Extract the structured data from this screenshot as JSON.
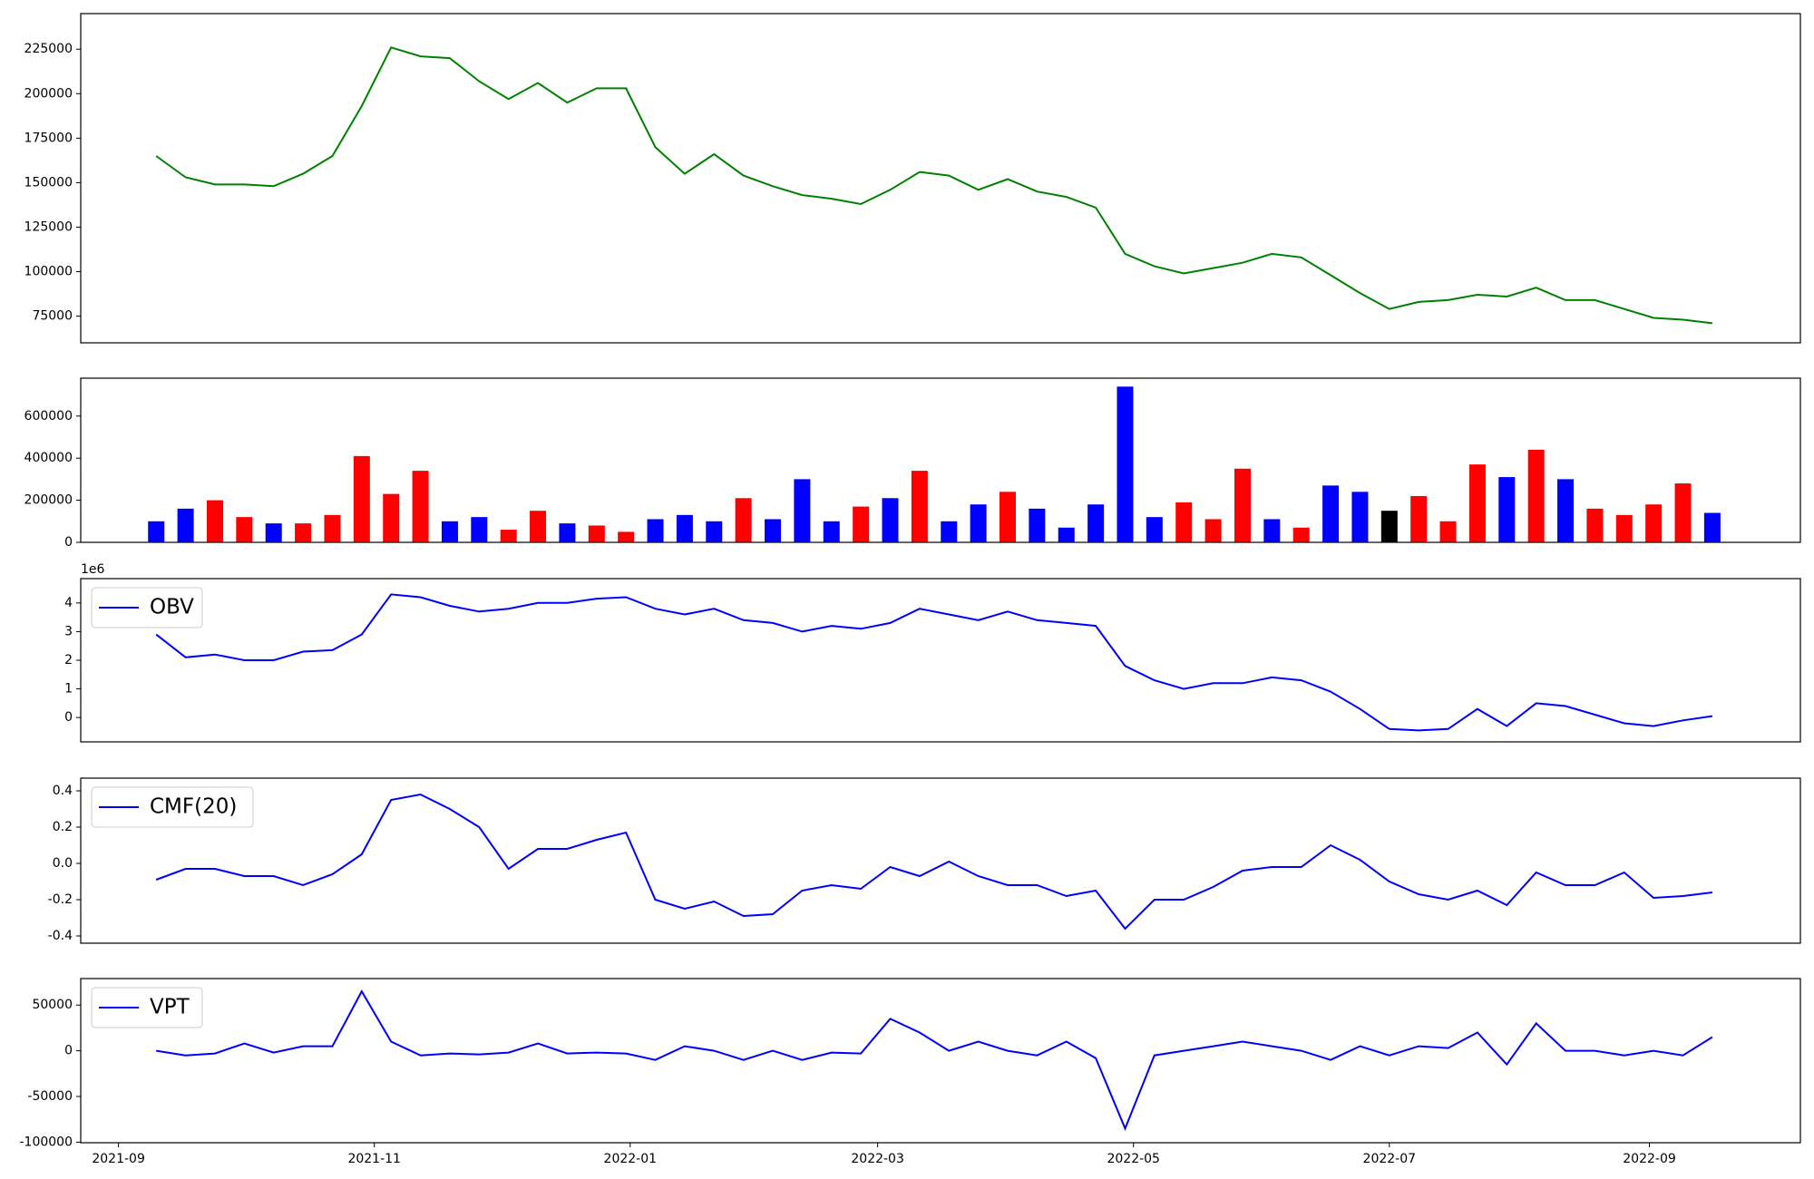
{
  "chart_data": [
    {
      "type": "line",
      "color": "#008000",
      "values": [
        165000,
        153000,
        149000,
        149000,
        148000,
        155000,
        165000,
        193000,
        226000,
        221000,
        220000,
        207000,
        197000,
        206000,
        195000,
        203000,
        203000,
        170000,
        155000,
        166000,
        154000,
        148000,
        143000,
        141000,
        138000,
        146000,
        156000,
        154000,
        146000,
        152000,
        145000,
        142000,
        136000,
        110000,
        103000,
        99000,
        102000,
        105000,
        110000,
        108000,
        98000,
        88000,
        79000,
        83000,
        84000,
        87000,
        86000,
        91000,
        84000,
        84000,
        79000,
        74000,
        73000,
        71000
      ],
      "ylim": [
        60000,
        245000
      ],
      "yticks": [
        75000,
        100000,
        125000,
        150000,
        175000,
        200000,
        225000
      ]
    },
    {
      "type": "bar",
      "values": [
        100000,
        160000,
        200000,
        120000,
        90000,
        90000,
        130000,
        410000,
        230000,
        340000,
        100000,
        120000,
        60000,
        150000,
        90000,
        80000,
        50000,
        110000,
        130000,
        100000,
        210000,
        110000,
        300000,
        100000,
        170000,
        210000,
        340000,
        100000,
        180000,
        240000,
        160000,
        70000,
        180000,
        740000,
        120000,
        190000,
        110000,
        350000,
        110000,
        70000,
        270000,
        240000,
        150000,
        220000,
        100000,
        370000,
        310000,
        440000,
        300000,
        160000,
        130000,
        180000,
        280000,
        140000
      ],
      "colors": [
        "blue",
        "blue",
        "red",
        "red",
        "blue",
        "red",
        "red",
        "red",
        "red",
        "red",
        "blue",
        "blue",
        "red",
        "red",
        "blue",
        "red",
        "red",
        "blue",
        "blue",
        "blue",
        "red",
        "blue",
        "blue",
        "blue",
        "red",
        "blue",
        "red",
        "blue",
        "blue",
        "red",
        "blue",
        "blue",
        "blue",
        "blue",
        "blue",
        "red",
        "red",
        "red",
        "blue",
        "red",
        "blue",
        "blue",
        "black",
        "red",
        "red",
        "red",
        "blue",
        "red",
        "blue",
        "red",
        "red",
        "red",
        "red",
        "blue"
      ],
      "ylim": [
        0,
        780000
      ],
      "yticks": [
        0,
        200000,
        400000,
        600000
      ]
    },
    {
      "type": "line",
      "legend": "upper left",
      "y_offset_label": "1e6",
      "series": [
        {
          "name": "OBV",
          "color": "blue",
          "values": [
            2.9,
            2.1,
            2.2,
            2.0,
            2.0,
            2.3,
            2.35,
            2.9,
            4.3,
            4.2,
            3.9,
            3.7,
            3.8,
            4.0,
            4.0,
            4.15,
            4.2,
            3.8,
            3.6,
            3.8,
            3.4,
            3.3,
            3.0,
            3.2,
            3.1,
            3.3,
            3.8,
            3.6,
            3.4,
            3.7,
            3.4,
            3.3,
            3.2,
            1.8,
            1.3,
            1.0,
            1.2,
            1.2,
            1.4,
            1.3,
            0.9,
            0.3,
            -0.4,
            -0.45,
            -0.4,
            0.3,
            -0.3,
            0.5,
            0.4,
            0.1,
            -0.2,
            -0.3,
            -0.1,
            0.05
          ]
        }
      ],
      "ylim": [
        -0.85,
        4.85
      ],
      "yticks": [
        0,
        1,
        2,
        3,
        4
      ]
    },
    {
      "type": "line",
      "legend": "upper left",
      "series": [
        {
          "name": "CMF(20)",
          "color": "blue",
          "values": [
            -0.09,
            -0.03,
            -0.03,
            -0.07,
            -0.07,
            -0.12,
            -0.06,
            0.05,
            0.35,
            0.38,
            0.3,
            0.2,
            -0.03,
            0.08,
            0.08,
            0.13,
            0.17,
            -0.2,
            -0.25,
            -0.21,
            -0.29,
            -0.28,
            -0.15,
            -0.12,
            -0.14,
            -0.02,
            -0.07,
            0.01,
            -0.07,
            -0.12,
            -0.12,
            -0.18,
            -0.15,
            -0.36,
            -0.2,
            -0.2,
            -0.13,
            -0.04,
            -0.02,
            -0.02,
            0.1,
            0.02,
            -0.1,
            -0.17,
            -0.2,
            -0.15,
            -0.23,
            -0.05,
            -0.12,
            -0.12,
            -0.05,
            -0.19,
            -0.18,
            -0.16
          ]
        }
      ],
      "ylim": [
        -0.44,
        0.47
      ],
      "yticks": [
        -0.4,
        -0.2,
        {
          "value": 0,
          "label": "0.0"
        },
        0.2,
        0.4
      ]
    },
    {
      "type": "line",
      "legend": "upper left",
      "series": [
        {
          "name": "VPT",
          "color": "blue",
          "values": [
            0,
            -5000,
            -3000,
            8000,
            -2000,
            5000,
            5000,
            65000,
            10000,
            -5000,
            -3000,
            -4000,
            -2000,
            8000,
            -3000,
            -2000,
            -3000,
            -10000,
            5000,
            0,
            -10000,
            0,
            -10000,
            -2000,
            -3000,
            35000,
            20000,
            0,
            10000,
            0,
            -5000,
            10000,
            -8000,
            -85000,
            -5000,
            0,
            5000,
            10000,
            5000,
            0,
            -10000,
            5000,
            -5000,
            5000,
            3000,
            20000,
            -15000,
            30000,
            0,
            0,
            -5000,
            0,
            -5000,
            15000
          ]
        }
      ],
      "ylim": [
        -100600,
        79000
      ],
      "yticks": [
        -100000,
        -50000,
        0,
        50000
      ],
      "x": [
        "2021-09-10",
        "2021-09-17",
        "2021-09-24",
        "2021-10-01",
        "2021-10-08",
        "2021-10-15",
        "2021-10-22",
        "2021-10-29",
        "2021-11-05",
        "2021-11-12",
        "2021-11-19",
        "2021-11-26",
        "2021-12-03",
        "2021-12-10",
        "2021-12-17",
        "2021-12-24",
        "2021-12-31",
        "2022-01-07",
        "2022-01-14",
        "2022-01-21",
        "2022-01-28",
        "2022-02-04",
        "2022-02-11",
        "2022-02-18",
        "2022-02-25",
        "2022-03-04",
        "2022-03-11",
        "2022-03-18",
        "2022-03-25",
        "2022-04-01",
        "2022-04-08",
        "2022-04-15",
        "2022-04-22",
        "2022-04-29",
        "2022-05-06",
        "2022-05-13",
        "2022-05-20",
        "2022-05-27",
        "2022-06-03",
        "2022-06-10",
        "2022-06-17",
        "2022-06-24",
        "2022-07-01",
        "2022-07-08",
        "2022-07-15",
        "2022-07-22",
        "2022-07-29",
        "2022-08-05",
        "2022-08-12",
        "2022-08-19",
        "2022-08-26",
        "2022-09-02",
        "2022-09-09",
        "2022-09-16"
      ],
      "xlim": [
        "2021-08-23",
        "2022-10-07"
      ],
      "xticks": [
        {
          "value": "2021-09-01",
          "label": "2021-09"
        },
        {
          "value": "2021-11-01",
          "label": "2021-11"
        },
        {
          "value": "2022-01-01",
          "label": "2022-01"
        },
        {
          "value": "2022-03-01",
          "label": "2022-03"
        },
        {
          "value": "2022-05-01",
          "label": "2022-05"
        },
        {
          "value": "2022-07-01",
          "label": "2022-07"
        },
        {
          "value": "2022-09-01",
          "label": "2022-09"
        }
      ]
    }
  ]
}
